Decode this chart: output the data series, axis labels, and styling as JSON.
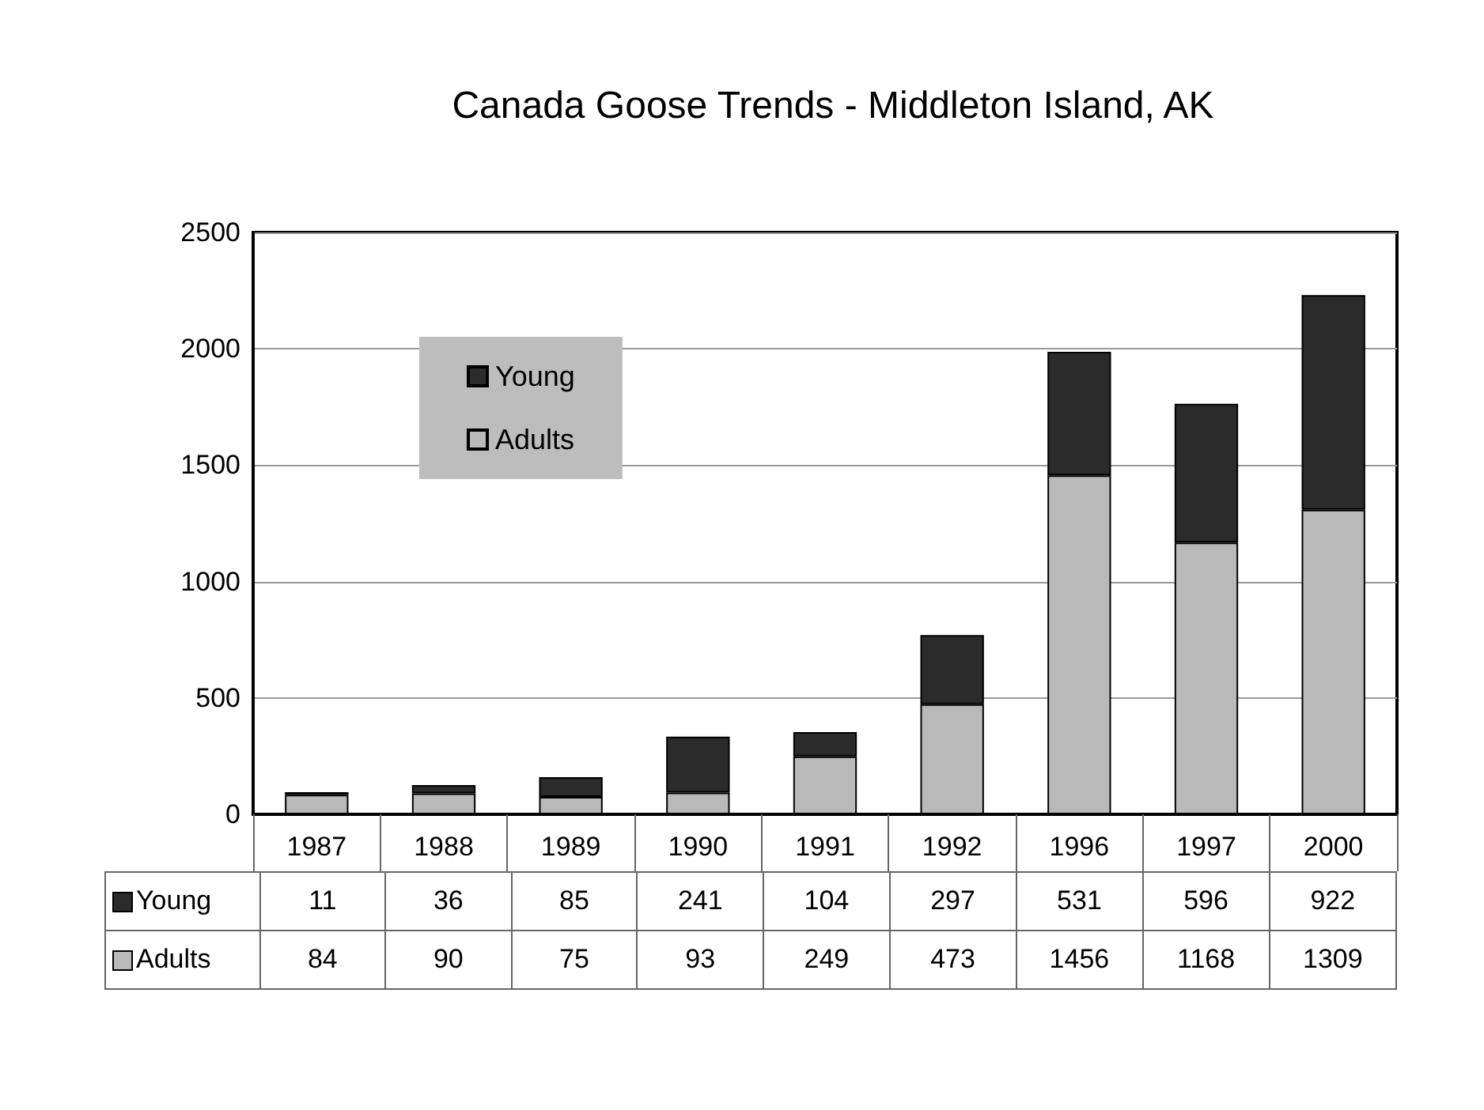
{
  "chart_data": {
    "type": "bar",
    "title": "Canada Goose Trends - Middleton Island, AK",
    "categories": [
      "1987",
      "1988",
      "1989",
      "1990",
      "1991",
      "1992",
      "1996",
      "1997",
      "2000"
    ],
    "series": [
      {
        "name": "Adults",
        "color": "#b9b9b9",
        "values": [
          84,
          90,
          75,
          93,
          249,
          473,
          1456,
          1168,
          1309
        ]
      },
      {
        "name": "Young",
        "color": "#2b2b2b",
        "values": [
          11,
          36,
          85,
          241,
          104,
          297,
          531,
          596,
          922
        ]
      }
    ],
    "stacked": true,
    "ylim": [
      0,
      2500
    ],
    "yticks": [
      0,
      500,
      1000,
      1500,
      2000,
      2500
    ],
    "grid": "y",
    "legend": "top left",
    "data_labels": true
  }
}
